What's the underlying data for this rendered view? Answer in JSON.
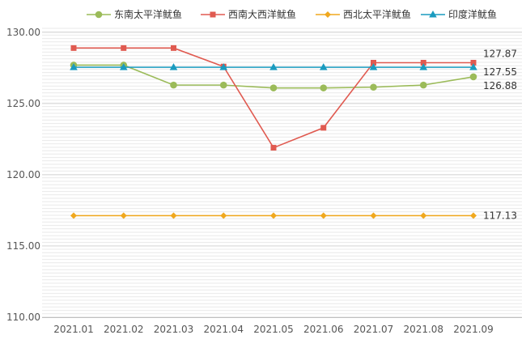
{
  "chart_data": {
    "type": "line",
    "categories": [
      "2021.01",
      "2021.02",
      "2021.03",
      "2021.04",
      "2021.05",
      "2021.06",
      "2021.07",
      "2021.08",
      "2021.09"
    ],
    "ylim": [
      110,
      130
    ],
    "yticks": [
      "110.00",
      "115.00",
      "120.00",
      "125.00",
      "130.00"
    ],
    "grid": true,
    "legend_position": "top",
    "series": [
      {
        "name": "东南太平洋鱿鱼",
        "color": "#9BBB59",
        "marker": "circle",
        "values": [
          127.7,
          127.7,
          126.3,
          126.3,
          126.1,
          126.1,
          126.15,
          126.3,
          126.88
        ],
        "end_label": "126.88"
      },
      {
        "name": "西南大西洋鱿鱼",
        "color": "#E05A50",
        "marker": "square",
        "values": [
          128.9,
          128.9,
          128.9,
          127.6,
          121.9,
          123.3,
          127.87,
          127.87,
          127.87
        ],
        "end_label": "127.87"
      },
      {
        "name": "西北太平洋鱿鱼",
        "color": "#F0A81E",
        "marker": "diamond",
        "values": [
          117.13,
          117.13,
          117.13,
          117.13,
          117.13,
          117.13,
          117.13,
          117.13,
          117.13
        ],
        "end_label": "117.13"
      },
      {
        "name": "印度洋鱿鱼",
        "color": "#1A9BBF",
        "marker": "triangle",
        "values": [
          127.55,
          127.55,
          127.55,
          127.55,
          127.55,
          127.55,
          127.55,
          127.55,
          127.55
        ],
        "end_label": "127.55"
      }
    ]
  }
}
